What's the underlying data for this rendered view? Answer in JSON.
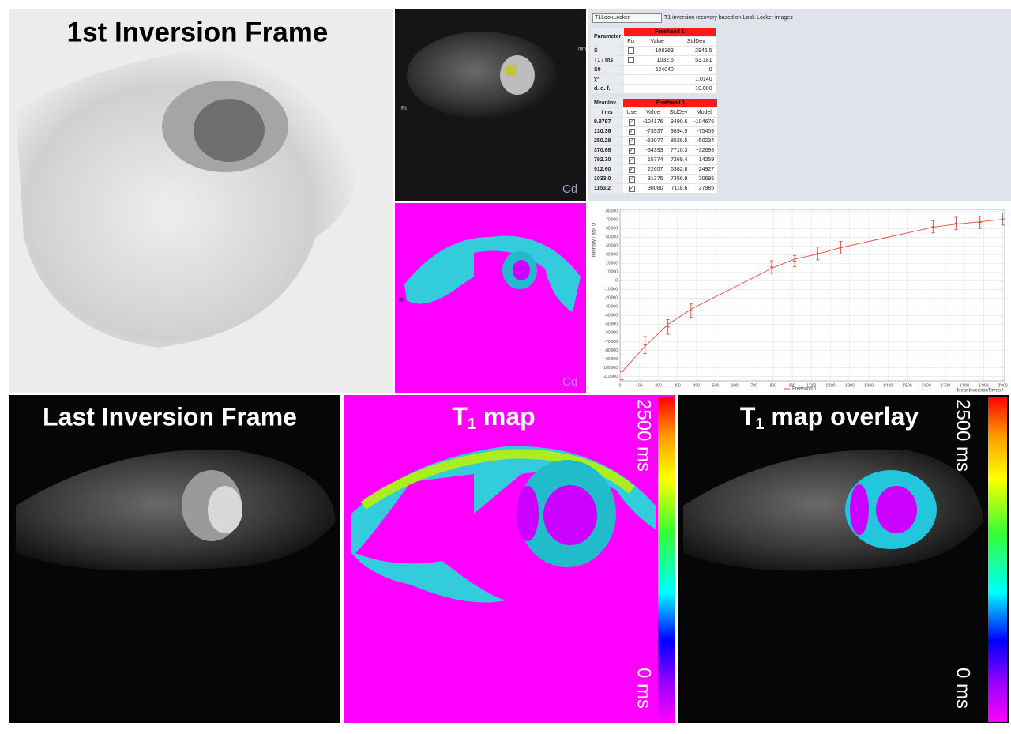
{
  "panels": {
    "first_frame": "1st Inversion Frame",
    "last_frame": "Last Inversion Frame",
    "t1_map": {
      "symbol": "T",
      "subscript": "1",
      "rest": " map"
    },
    "t1_overlay": {
      "symbol": "T",
      "subscript": "1",
      "rest": " map overlay"
    },
    "colorbar": {
      "max": "2500 ms",
      "min": "0 ms"
    },
    "viewer": {
      "orientation": "Rt",
      "scale_unit": "mm",
      "logo": "Cd"
    }
  },
  "fit_panel": {
    "model": "T1LookLocker",
    "description": "T1 inversion recovery based on Look-Locker images",
    "parameter_table": {
      "header": "Parameter",
      "group": "Freehand 1",
      "columns": [
        "Fix",
        "Value",
        "StdDev"
      ],
      "rows": [
        {
          "name": "S",
          "fix": false,
          "value": "108363",
          "stddev": "2946.5"
        },
        {
          "name": "T1 / ms",
          "fix": false,
          "value": "1032.6",
          "stddev": "53.181"
        },
        {
          "name": "S0",
          "value": "624040",
          "stddev": "0"
        },
        {
          "name": "χ²",
          "value": "1.0140"
        },
        {
          "name": "d. o. f.",
          "value": "10.000"
        }
      ]
    },
    "data_table": {
      "header": "MeanInv...",
      "unit": "/ ms",
      "group": "Freehand 1",
      "columns": [
        "Use",
        "Value",
        "StdDev",
        "Model"
      ],
      "rows": [
        [
          "9.8797",
          "-104176",
          "9490.6",
          "-104676"
        ],
        [
          "130.36",
          "-73937",
          "9894.5",
          "-75459"
        ],
        [
          "250.28",
          "-53077",
          "8526.5",
          "-50234"
        ],
        [
          "370.68",
          "-34393",
          "7710.3",
          "-32699"
        ],
        [
          "792.30",
          "15774",
          "7269.4",
          "14259"
        ],
        [
          "912.60",
          "22657",
          "6382.8",
          "24927"
        ],
        [
          "1033.0",
          "31375",
          "7356.9",
          "30695"
        ],
        [
          "1153.2",
          "38080",
          "7118.6",
          "37985"
        ]
      ]
    }
  },
  "chart_data": {
    "type": "line",
    "x_label": "MeanInversionTimes / ",
    "y_label": "Intensity / arb. U",
    "x": [
      9.8797,
      130.36,
      250.28,
      370.68,
      792.3,
      912.6,
      1033.0,
      1153.2,
      1636,
      1756,
      1880,
      2000
    ],
    "series": [
      {
        "name": "Freehand 1",
        "color": "#e8453c",
        "values": [
          -104176,
          -73937,
          -53077,
          -34393,
          15774,
          22657,
          31375,
          38080,
          62000,
          66000,
          67000,
          71000
        ],
        "errors": [
          9490.6,
          9894.5,
          8526.5,
          7710.3,
          7269.4,
          6382.8,
          7356.9,
          7118.6,
          7000,
          7000,
          7000,
          7000
        ],
        "model": [
          -104676,
          -75459,
          -50234,
          -32699,
          14259,
          24927,
          30695,
          37985,
          61500,
          65000,
          67800,
          70500
        ]
      }
    ],
    "xlim": [
      0,
      2010
    ],
    "ylim": [
      -115000,
      82000
    ],
    "xticks": [
      0,
      100,
      200,
      300,
      400,
      500,
      600,
      700,
      800,
      900,
      {
        "value": 1000,
        "label": "1'000"
      },
      {
        "value": 1100,
        "label": "1'100"
      },
      {
        "value": 1200,
        "label": "1'200"
      },
      {
        "value": 1300,
        "label": "1'300"
      },
      {
        "value": 1400,
        "label": "1'400"
      },
      {
        "value": 1500,
        "label": "1'500"
      },
      {
        "value": 1600,
        "label": "1'600"
      },
      {
        "value": 1700,
        "label": "1'700"
      },
      {
        "value": 1800,
        "label": "1'800"
      },
      {
        "value": 1900,
        "label": "1'900"
      },
      {
        "value": 2000,
        "label": "2'000"
      }
    ],
    "yticks": [
      {
        "value": -110000,
        "label": "-110'000"
      },
      {
        "value": -100000,
        "label": "-100'000"
      },
      {
        "value": -90000,
        "label": "-90'000"
      },
      {
        "value": -80000,
        "label": "-80'000"
      },
      {
        "value": -70000,
        "label": "-70'000"
      },
      {
        "value": -60000,
        "label": "-60'000"
      },
      {
        "value": -50000,
        "label": "-50'000"
      },
      {
        "value": -40000,
        "label": "-40'000"
      },
      {
        "value": -30000,
        "label": "-30'000"
      },
      {
        "value": -20000,
        "label": "-20'000"
      },
      {
        "value": -10000,
        "label": "-10'000"
      },
      0,
      {
        "value": 10000,
        "label": "10'000"
      },
      {
        "value": 20000,
        "label": "20'000"
      },
      {
        "value": 30000,
        "label": "30'000"
      },
      {
        "value": 40000,
        "label": "40'000"
      },
      {
        "value": 50000,
        "label": "50'000"
      },
      {
        "value": 60000,
        "label": "60'000"
      },
      {
        "value": 70000,
        "label": "70'000"
      },
      {
        "value": 80000,
        "label": "80'000"
      }
    ],
    "grid": true
  }
}
